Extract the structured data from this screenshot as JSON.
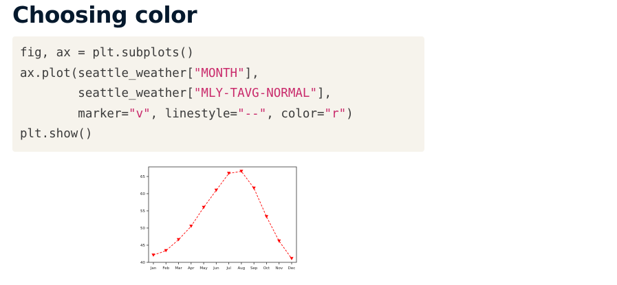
{
  "slide": {
    "title": "Choosing color"
  },
  "code": {
    "lines": [
      [
        {
          "t": "fig, ax = plt.subplots()",
          "s": false
        }
      ],
      [
        {
          "t": "ax.plot(seattle_weather[",
          "s": false
        },
        {
          "t": "\"MONTH\"",
          "s": true
        },
        {
          "t": "],",
          "s": false
        }
      ],
      [
        {
          "t": "        seattle_weather[",
          "s": false
        },
        {
          "t": "\"MLY-TAVG-NORMAL\"",
          "s": true
        },
        {
          "t": "],",
          "s": false
        }
      ],
      [
        {
          "t": "        marker=",
          "s": false
        },
        {
          "t": "\"v\"",
          "s": true
        },
        {
          "t": ", linestyle=",
          "s": false
        },
        {
          "t": "\"--\"",
          "s": true
        },
        {
          "t": ", color=",
          "s": false
        },
        {
          "t": "\"r\"",
          "s": true
        },
        {
          "t": ")",
          "s": false
        }
      ],
      [
        {
          "t": "plt.show()",
          "s": false
        }
      ]
    ],
    "string_color": "#c92a6b",
    "text_color": "#3a3a3a",
    "background": "#f6f3ec"
  },
  "chart_data": {
    "type": "line",
    "categories": [
      "Jan",
      "Feb",
      "Mar",
      "Apr",
      "May",
      "Jun",
      "Jul",
      "Aug",
      "Sep",
      "Oct",
      "Nov",
      "Dec"
    ],
    "series": [
      {
        "values": [
          42.1,
          43.4,
          46.6,
          50.5,
          56.0,
          61.0,
          65.9,
          66.5,
          61.6,
          53.3,
          46.2,
          41.1
        ],
        "color": "#ff0000",
        "marker": "v",
        "linestyle": "--"
      }
    ],
    "yticks": [
      "40",
      "45",
      "50",
      "55",
      "60",
      "65"
    ],
    "ylim": [
      40,
      67.8
    ],
    "title": "",
    "xlabel": "",
    "ylabel": "",
    "grid": false
  }
}
